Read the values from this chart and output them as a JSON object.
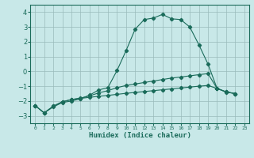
{
  "xlabel": "Humidex (Indice chaleur)",
  "bg_color": "#c8e8e8",
  "grid_color": "#99bbbb",
  "line_color": "#1a6b5a",
  "xlim": [
    -0.5,
    23.5
  ],
  "ylim": [
    -3.5,
    4.5
  ],
  "yticks": [
    -3,
    -2,
    -1,
    0,
    1,
    2,
    3,
    4
  ],
  "xticks": [
    0,
    1,
    2,
    3,
    4,
    5,
    6,
    7,
    8,
    9,
    10,
    11,
    12,
    13,
    14,
    15,
    16,
    17,
    18,
    19,
    20,
    21,
    22,
    23
  ],
  "series1_x": [
    0,
    1,
    2,
    3,
    4,
    5,
    6,
    7,
    8,
    9,
    10,
    11,
    12,
    13,
    14,
    15,
    16,
    17,
    18,
    19,
    20,
    21,
    22
  ],
  "series1_y": [
    -2.3,
    -2.8,
    -2.4,
    -2.1,
    -2.0,
    -1.85,
    -1.6,
    -1.25,
    -1.1,
    0.05,
    1.4,
    2.85,
    3.5,
    3.6,
    3.85,
    3.55,
    3.5,
    3.0,
    1.8,
    0.5,
    -1.15,
    -1.4,
    -1.5
  ],
  "series2_x": [
    0,
    1,
    2,
    3,
    4,
    5,
    6,
    7,
    8,
    9,
    10,
    11,
    12,
    13,
    14,
    15,
    16,
    17,
    18,
    19,
    20,
    21,
    22
  ],
  "series2_y": [
    -2.3,
    -2.8,
    -2.35,
    -2.05,
    -1.9,
    -1.8,
    -1.65,
    -1.45,
    -1.3,
    -1.1,
    -0.95,
    -0.85,
    -0.75,
    -0.65,
    -0.55,
    -0.45,
    -0.38,
    -0.3,
    -0.22,
    -0.15,
    -1.15,
    -1.38,
    -1.5
  ],
  "series3_x": [
    0,
    1,
    2,
    3,
    4,
    5,
    6,
    7,
    8,
    9,
    10,
    11,
    12,
    13,
    14,
    15,
    16,
    17,
    18,
    19,
    20,
    21,
    22
  ],
  "series3_y": [
    -2.3,
    -2.8,
    -2.35,
    -2.05,
    -1.9,
    -1.82,
    -1.75,
    -1.68,
    -1.62,
    -1.55,
    -1.48,
    -1.42,
    -1.36,
    -1.3,
    -1.24,
    -1.18,
    -1.12,
    -1.06,
    -1.0,
    -0.95,
    -1.15,
    -1.38,
    -1.5
  ]
}
